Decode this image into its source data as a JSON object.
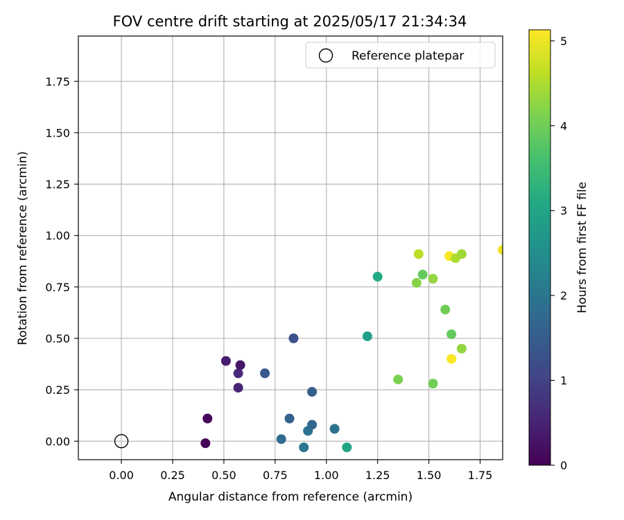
{
  "chart_data": {
    "type": "scatter",
    "title": "FOV centre drift starting at 2025/05/17 21:34:34",
    "xlabel": "Angular distance from reference (arcmin)",
    "ylabel": "Rotation from reference (arcmin)",
    "xlim": [
      -0.21,
      1.86
    ],
    "ylim": [
      -0.09,
      1.97
    ],
    "xticks": [
      "0.00",
      "0.25",
      "0.50",
      "0.75",
      "1.00",
      "1.25",
      "1.50",
      "1.75"
    ],
    "xtick_values": [
      0,
      0.25,
      0.5,
      0.75,
      1.0,
      1.25,
      1.5,
      1.75
    ],
    "yticks": [
      "0.00",
      "0.25",
      "0.50",
      "0.75",
      "1.00",
      "1.25",
      "1.50",
      "1.75"
    ],
    "ytick_values": [
      0,
      0.25,
      0.5,
      0.75,
      1.0,
      1.25,
      1.5,
      1.75
    ],
    "grid": true,
    "legend": {
      "placement": "top-right",
      "entries": [
        "Reference platepar"
      ]
    },
    "reference_point": {
      "x": 0,
      "y": 0,
      "label": "Reference platepar"
    },
    "colorbar": {
      "label": "Hours from first FF file",
      "colormap": "viridis",
      "range": [
        0,
        5.13
      ],
      "ticks": [
        "0",
        "1",
        "2",
        "3",
        "4",
        "5"
      ],
      "tick_values": [
        0,
        1,
        2,
        3,
        4,
        5
      ]
    },
    "points": [
      {
        "x": 0.41,
        "y": -0.01,
        "hours": 0.05
      },
      {
        "x": 0.42,
        "y": 0.11,
        "hours": 0.1
      },
      {
        "x": 0.51,
        "y": 0.39,
        "hours": 0.4
      },
      {
        "x": 0.57,
        "y": 0.26,
        "hours": 0.55
      },
      {
        "x": 0.57,
        "y": 0.33,
        "hours": 0.6
      },
      {
        "x": 0.58,
        "y": 0.37,
        "hours": 0.3
      },
      {
        "x": 0.7,
        "y": 0.33,
        "hours": 1.4
      },
      {
        "x": 0.78,
        "y": 0.01,
        "hours": 1.8
      },
      {
        "x": 0.82,
        "y": 0.11,
        "hours": 1.6
      },
      {
        "x": 0.84,
        "y": 0.5,
        "hours": 1.3
      },
      {
        "x": 0.89,
        "y": -0.03,
        "hours": 2.0
      },
      {
        "x": 0.91,
        "y": 0.05,
        "hours": 1.9
      },
      {
        "x": 0.93,
        "y": 0.08,
        "hours": 1.7
      },
      {
        "x": 0.93,
        "y": 0.24,
        "hours": 1.5
      },
      {
        "x": 1.04,
        "y": 0.06,
        "hours": 1.95
      },
      {
        "x": 1.1,
        "y": -0.03,
        "hours": 3.0
      },
      {
        "x": 1.2,
        "y": 0.51,
        "hours": 2.9
      },
      {
        "x": 1.25,
        "y": 0.8,
        "hours": 3.1
      },
      {
        "x": 1.35,
        "y": 0.3,
        "hours": 4.1
      },
      {
        "x": 1.44,
        "y": 0.77,
        "hours": 4.2
      },
      {
        "x": 1.45,
        "y": 0.91,
        "hours": 4.6
      },
      {
        "x": 1.47,
        "y": 0.81,
        "hours": 3.9
      },
      {
        "x": 1.52,
        "y": 0.79,
        "hours": 4.3
      },
      {
        "x": 1.52,
        "y": 0.28,
        "hours": 4.0
      },
      {
        "x": 1.58,
        "y": 0.64,
        "hours": 4.0
      },
      {
        "x": 1.6,
        "y": 0.9,
        "hours": 5.1
      },
      {
        "x": 1.61,
        "y": 0.52,
        "hours": 3.9
      },
      {
        "x": 1.61,
        "y": 0.4,
        "hours": 5.1
      },
      {
        "x": 1.63,
        "y": 0.89,
        "hours": 4.5
      },
      {
        "x": 1.66,
        "y": 0.91,
        "hours": 4.4
      },
      {
        "x": 1.66,
        "y": 0.45,
        "hours": 4.3
      },
      {
        "x": 1.86,
        "y": 0.93,
        "hours": 5.0
      }
    ]
  }
}
